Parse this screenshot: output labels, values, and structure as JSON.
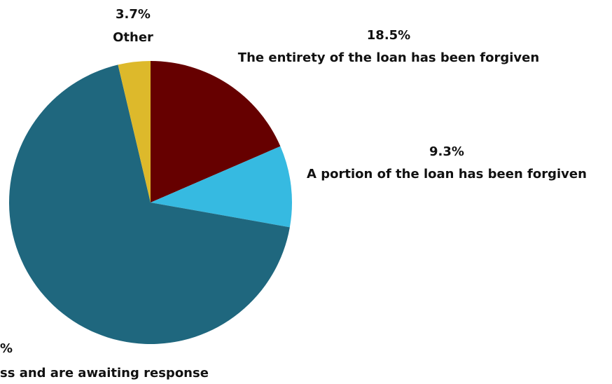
{
  "chart_data": {
    "type": "pie",
    "title": "",
    "categories": [
      "The entirety of the loan has been forgiven",
      "A portion of the loan has been forgiven",
      "Have completed the process and are awaiting response",
      "Other"
    ],
    "values": [
      18.5,
      9.3,
      68.5,
      3.7
    ],
    "value_labels": [
      "18.5%",
      "9.3%",
      "%",
      "3.7%"
    ],
    "visible_category_labels": [
      "The entirety of the loan has been forgiven",
      "A portion of the loan has been forgiven",
      "ss and are awaiting response",
      "Other"
    ],
    "colors": [
      "#660000",
      "#36BAE1",
      "#1F677E",
      "#DDB92B"
    ],
    "start_angle_deg": 0,
    "direction": "clockwise",
    "legend": "none"
  }
}
